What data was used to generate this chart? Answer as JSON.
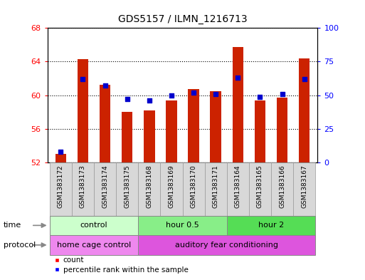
{
  "title": "GDS5157 / ILMN_1216713",
  "samples": [
    "GSM1383172",
    "GSM1383173",
    "GSM1383174",
    "GSM1383175",
    "GSM1383168",
    "GSM1383169",
    "GSM1383170",
    "GSM1383171",
    "GSM1383164",
    "GSM1383165",
    "GSM1383166",
    "GSM1383167"
  ],
  "count_values": [
    53.0,
    64.3,
    61.2,
    58.0,
    58.2,
    59.4,
    60.7,
    60.5,
    65.7,
    59.4,
    59.7,
    64.4
  ],
  "percentile_values": [
    8,
    62,
    57,
    47,
    46,
    50,
    52,
    51,
    63,
    49,
    51,
    62
  ],
  "ylim_left": [
    52,
    68
  ],
  "ylim_right": [
    0,
    100
  ],
  "yticks_left": [
    52,
    56,
    60,
    64,
    68
  ],
  "yticks_right": [
    0,
    25,
    50,
    75,
    100
  ],
  "bar_color": "#cc2200",
  "dot_color": "#0000cc",
  "bar_width": 0.5,
  "time_groups": [
    {
      "label": "control",
      "start": 0,
      "end": 3,
      "color": "#ccffcc"
    },
    {
      "label": "hour 0.5",
      "start": 4,
      "end": 7,
      "color": "#88ee88"
    },
    {
      "label": "hour 2",
      "start": 8,
      "end": 11,
      "color": "#55dd55"
    }
  ],
  "protocol_groups": [
    {
      "label": "home cage control",
      "start": 0,
      "end": 3,
      "color": "#ee88ee"
    },
    {
      "label": "auditory fear conditioning",
      "start": 4,
      "end": 11,
      "color": "#dd55dd"
    }
  ],
  "legend_count_label": "count",
  "legend_percentile_label": "percentile rank within the sample",
  "time_label": "time",
  "protocol_label": "protocol",
  "xtick_bg_color": "#d8d8d8",
  "xtick_border_color": "#999999"
}
